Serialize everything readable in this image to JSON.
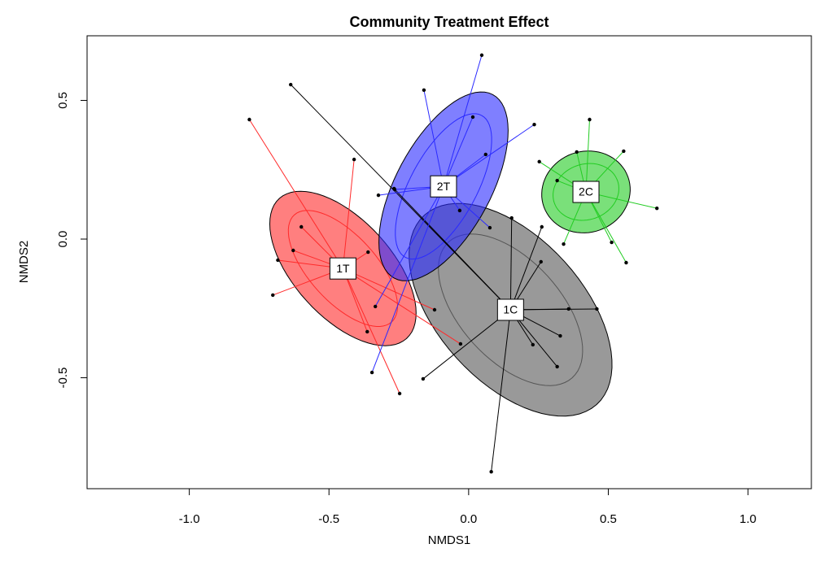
{
  "chart_data": {
    "type": "ordination",
    "title": "Community Treatment Effect",
    "x_label": "NMDS1",
    "y_label": "NMDS2",
    "xlim": [
      -1.366,
      1.227
    ],
    "ylim": [
      -0.9,
      0.733
    ],
    "xticks": [
      {
        "value": -1,
        "label": "-1.0"
      },
      -0.5,
      {
        "value": 0,
        "label": "0.0"
      },
      0.5,
      {
        "value": 1,
        "label": "1.0"
      }
    ],
    "yticks": [
      -0.5,
      {
        "value": 0,
        "label": "0.0"
      },
      0.5
    ],
    "series": [
      {
        "name": "1C",
        "color": "#555555",
        "centroid": [
          0.15,
          -0.255
        ],
        "ellipses": [
          {
            "a": 0.46,
            "b": 0.26,
            "angle": -48
          },
          {
            "a": 0.33,
            "b": 0.18,
            "angle": -48
          }
        ],
        "x": [
          -0.637,
          -0.267,
          0.154,
          0.262,
          0.259,
          0.358,
          0.459,
          0.328,
          0.23,
          0.317,
          -0.163,
          0.081
        ],
        "y": [
          0.557,
          0.182,
          0.076,
          0.044,
          -0.082,
          -0.252,
          -0.252,
          -0.349,
          -0.381,
          -0.46,
          -0.504,
          -0.839
        ]
      },
      {
        "name": "1T",
        "color": "#ff2a2a",
        "centroid": [
          -0.45,
          -0.106
        ],
        "ellipses": [
          {
            "a": 0.34,
            "b": 0.175,
            "angle": -48
          },
          {
            "a": 0.26,
            "b": 0.12,
            "angle": -48
          }
        ],
        "x": [
          -0.785,
          -0.41,
          -0.599,
          -0.628,
          -0.683,
          -0.701,
          -0.36,
          -0.363,
          -0.247,
          -0.122,
          -0.029
        ],
        "y": [
          0.431,
          0.287,
          0.044,
          -0.041,
          -0.076,
          -0.202,
          -0.047,
          -0.334,
          -0.557,
          -0.255,
          -0.378
        ]
      },
      {
        "name": "2T",
        "color": "#2a2aff",
        "centroid": [
          -0.09,
          0.19
        ],
        "ellipses": [
          {
            "a": 0.375,
            "b": 0.17,
            "angle": 62
          },
          {
            "a": 0.29,
            "b": 0.12,
            "angle": 62
          }
        ],
        "x": [
          -0.16,
          0.047,
          0.015,
          0.235,
          0.061,
          -0.323,
          -0.265,
          -0.032,
          0.076,
          -0.334,
          -0.346
        ],
        "y": [
          0.537,
          0.663,
          0.44,
          0.413,
          0.305,
          0.158,
          0.179,
          0.103,
          0.041,
          -0.243,
          -0.481
        ]
      },
      {
        "name": "2C",
        "color": "#22cc22",
        "centroid": [
          0.42,
          0.17
        ],
        "ellipses": [
          {
            "a": 0.16,
            "b": 0.146,
            "angle": 20
          },
          {
            "a": 0.12,
            "b": 0.1,
            "angle": 20
          }
        ],
        "x": [
          0.433,
          0.387,
          0.555,
          0.253,
          0.317,
          0.674,
          0.512,
          0.34,
          0.564
        ],
        "y": [
          0.431,
          0.314,
          0.317,
          0.279,
          0.211,
          0.111,
          -0.012,
          -0.018,
          -0.085
        ]
      }
    ]
  }
}
